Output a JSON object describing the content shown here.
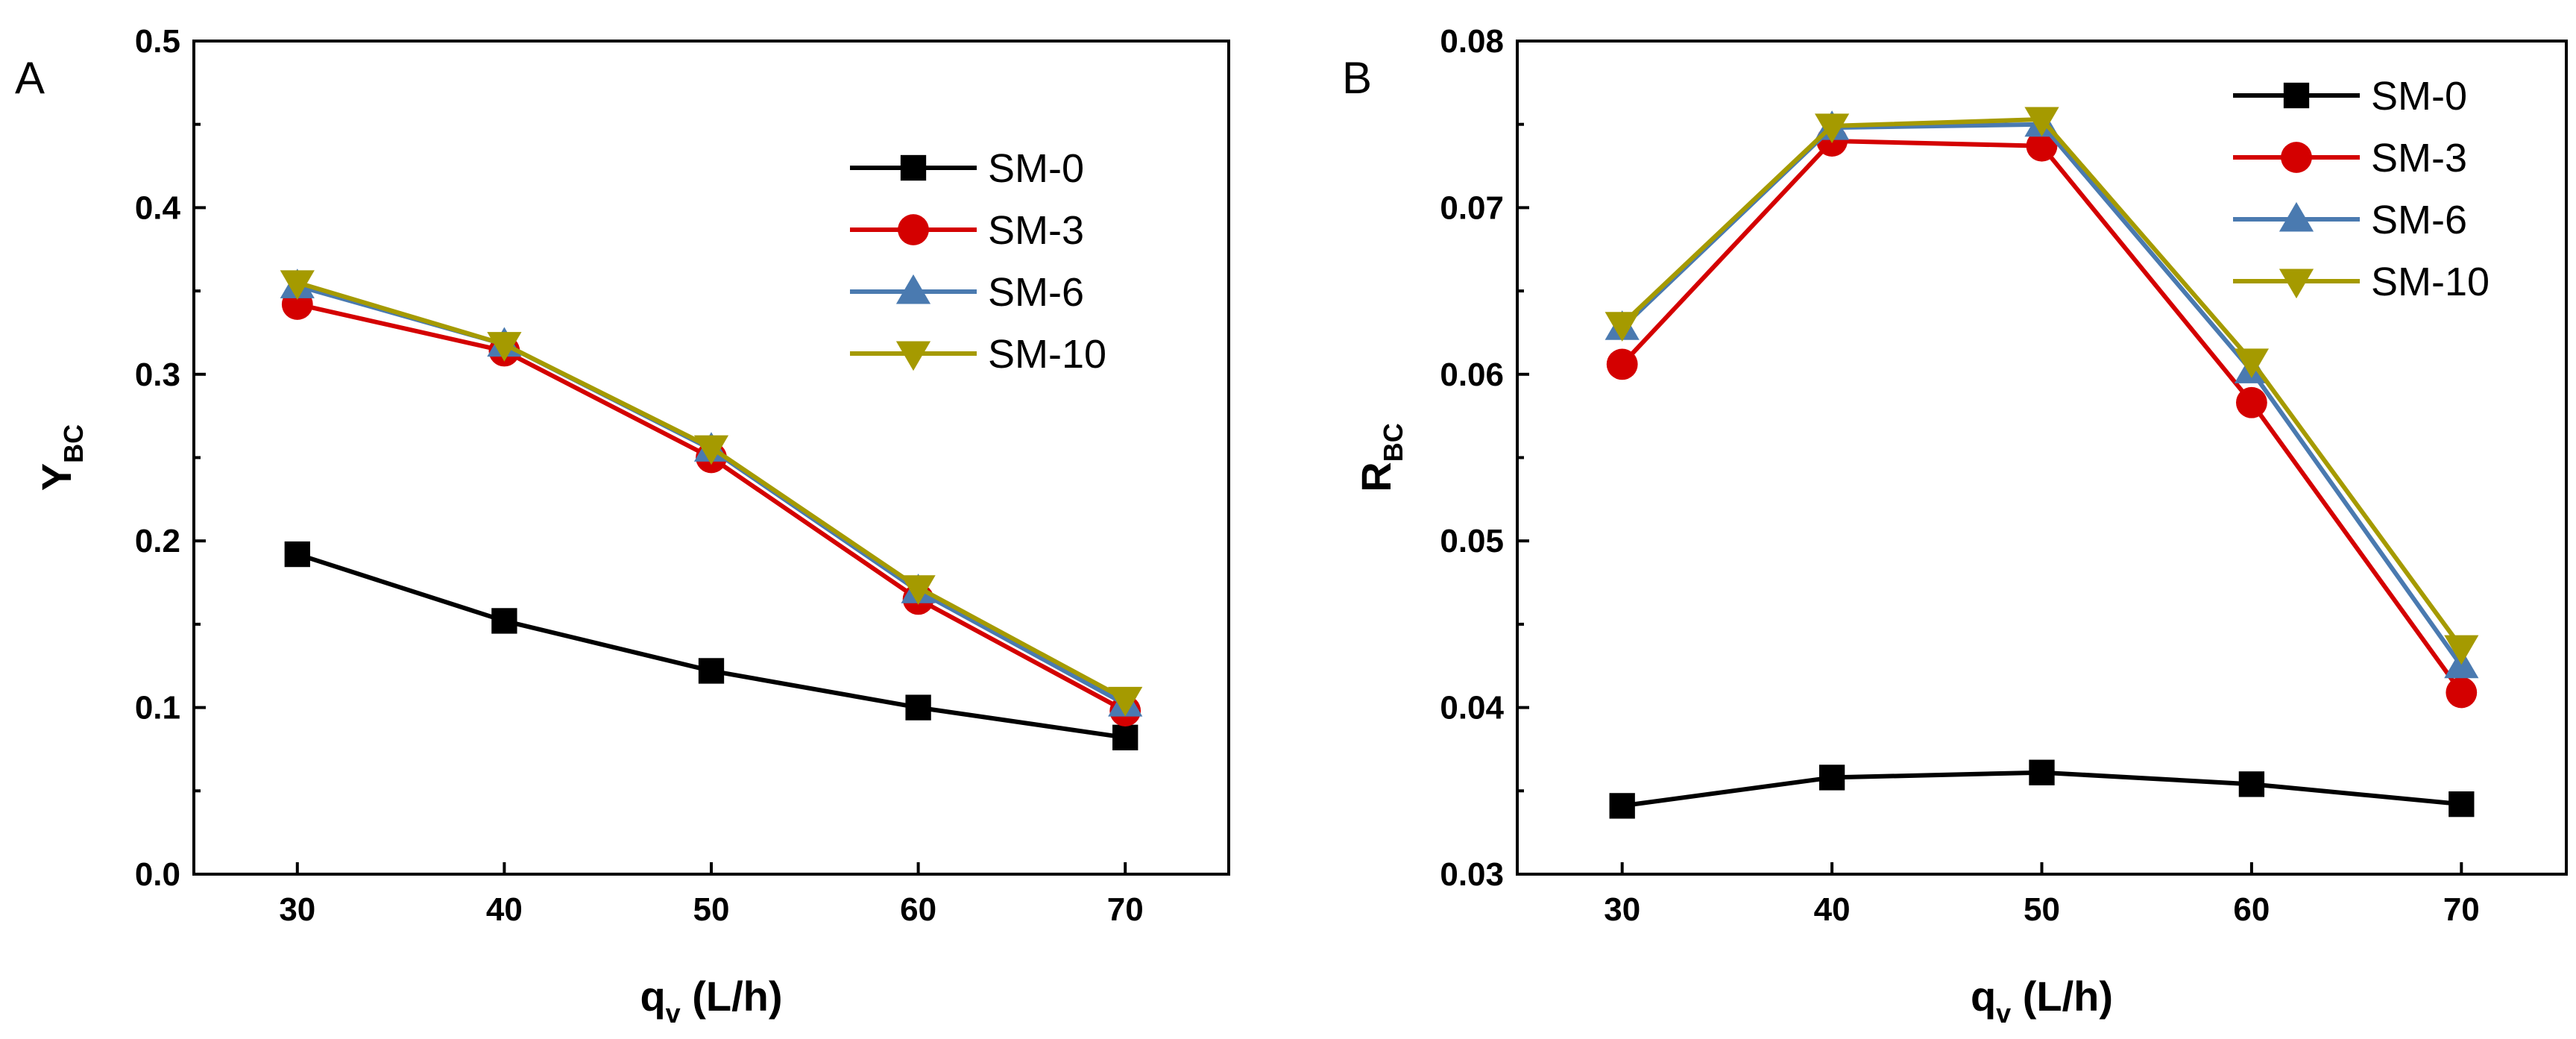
{
  "chart_data": [
    {
      "type": "line",
      "panel_label": "A",
      "x": [
        30,
        40,
        50,
        60,
        70
      ],
      "xticks": [
        "30",
        "40",
        "50",
        "60",
        "70"
      ],
      "xlim": [
        25,
        75
      ],
      "ylim": [
        0.0,
        0.5
      ],
      "yticks": [
        "0.0",
        "0.1",
        "0.2",
        "0.3",
        "0.4",
        "0.5"
      ],
      "xlabel": "q",
      "xlabel_sub": "v",
      "xlabel_unit": " (L/h)",
      "ylabel": "Y",
      "ylabel_sub": "BC",
      "grid": false,
      "legend_position": "top-right",
      "series": [
        {
          "name": "SM-0",
          "color": "#000000",
          "marker": "square",
          "values": [
            0.192,
            0.152,
            0.122,
            0.1,
            0.082
          ]
        },
        {
          "name": "SM-3",
          "color": "#d40000",
          "marker": "circle",
          "values": [
            0.342,
            0.314,
            0.25,
            0.165,
            0.098
          ]
        },
        {
          "name": "SM-6",
          "color": "#4a7ab0",
          "marker": "triangle-up",
          "values": [
            0.353,
            0.318,
            0.255,
            0.17,
            0.102
          ]
        },
        {
          "name": "SM-10",
          "color": "#a59a00",
          "marker": "triangle-down",
          "values": [
            0.355,
            0.318,
            0.256,
            0.172,
            0.105
          ]
        }
      ]
    },
    {
      "type": "line",
      "panel_label": "B",
      "x": [
        30,
        40,
        50,
        60,
        70
      ],
      "xticks": [
        "30",
        "40",
        "50",
        "60",
        "70"
      ],
      "xlim": [
        25,
        75
      ],
      "ylim": [
        0.03,
        0.08
      ],
      "yticks": [
        "0.03",
        "0.04",
        "0.05",
        "0.06",
        "0.07",
        "0.08"
      ],
      "xlabel": "q",
      "xlabel_sub": "v",
      "xlabel_unit": " (L/h)",
      "ylabel": "R",
      "ylabel_sub": "BC",
      "grid": false,
      "legend_position": "top-right",
      "series": [
        {
          "name": "SM-0",
          "color": "#000000",
          "marker": "square",
          "values": [
            0.0341,
            0.0358,
            0.0361,
            0.0354,
            0.0342
          ]
        },
        {
          "name": "SM-3",
          "color": "#d40000",
          "marker": "circle",
          "values": [
            0.0606,
            0.074,
            0.0737,
            0.0583,
            0.0409
          ]
        },
        {
          "name": "SM-6",
          "color": "#4a7ab0",
          "marker": "triangle-up",
          "values": [
            0.0628,
            0.0748,
            0.075,
            0.0602,
            0.0425
          ]
        },
        {
          "name": "SM-10",
          "color": "#a59a00",
          "marker": "triangle-down",
          "values": [
            0.063,
            0.0749,
            0.0753,
            0.0608,
            0.0436
          ]
        }
      ]
    }
  ]
}
